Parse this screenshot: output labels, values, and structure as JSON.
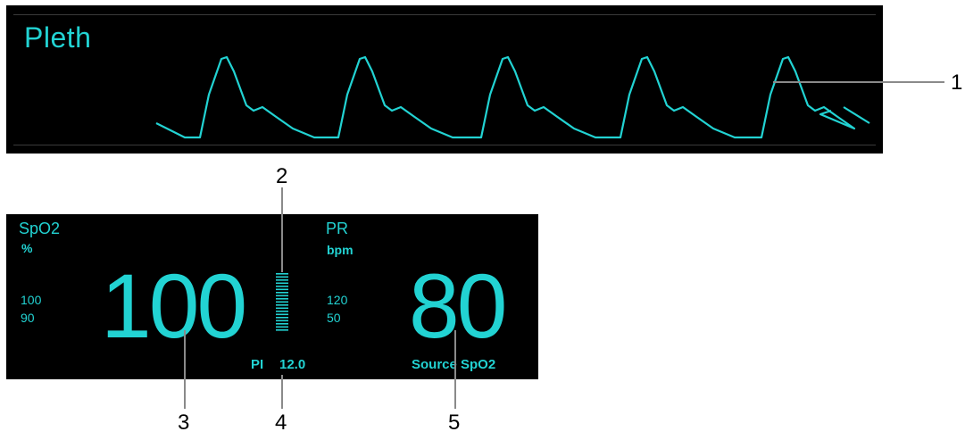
{
  "pleth": {
    "title": "Pleth"
  },
  "spo2": {
    "label": "SpO2",
    "unit": "%",
    "limit_high": "100",
    "limit_low": "90",
    "value": "100"
  },
  "pi": {
    "label": "PI",
    "value": "12.0"
  },
  "pr": {
    "label": "PR",
    "unit": "bpm",
    "limit_high": "120",
    "limit_low": "50",
    "value": "80",
    "source": "Source SpO2"
  },
  "callouts": [
    "1",
    "2",
    "3",
    "4",
    "5"
  ],
  "colors": {
    "accent": "#22d3d3",
    "background": "#000000"
  }
}
